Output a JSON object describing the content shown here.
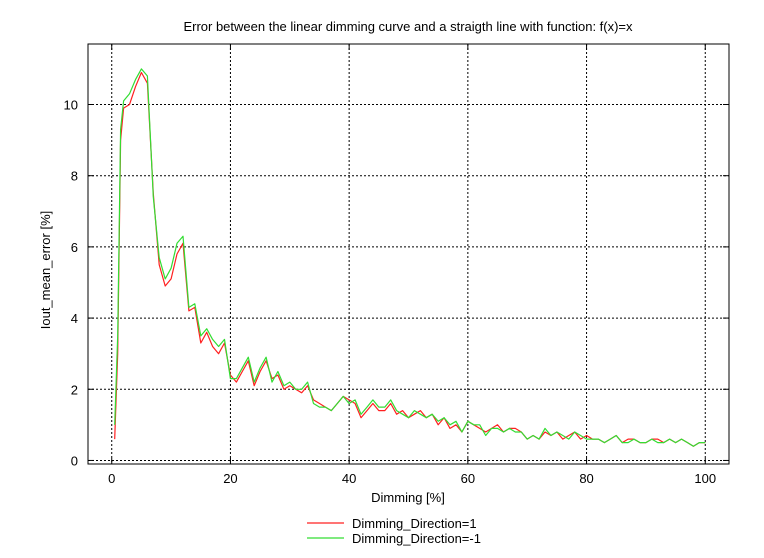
{
  "chart_data": {
    "type": "line",
    "title": "Error between the linear dimming curve and a straigth line with function: f(x)=x",
    "xlabel": "Dimming [%]",
    "ylabel": "Iout_mean_error [%]",
    "xlim": [
      -4,
      104
    ],
    "ylim": [
      -0.1,
      11.7
    ],
    "xticks": [
      0,
      20,
      40,
      60,
      80,
      100
    ],
    "yticks": [
      0,
      2,
      4,
      6,
      8,
      10
    ],
    "grid": true,
    "legend_position": "bottom-center",
    "series": [
      {
        "name": "Dimming_Direction=1",
        "color": "#ff2020",
        "points": [
          [
            0.5,
            0.6
          ],
          [
            1,
            3
          ],
          [
            1.5,
            9
          ],
          [
            2,
            9.9
          ],
          [
            3,
            10.0
          ],
          [
            4,
            10.5
          ],
          [
            5,
            10.9
          ],
          [
            6,
            10.6
          ],
          [
            7,
            7.5
          ],
          [
            8,
            5.5
          ],
          [
            9,
            4.9
          ],
          [
            10,
            5.1
          ],
          [
            11,
            5.8
          ],
          [
            12,
            6.1
          ],
          [
            13,
            4.2
          ],
          [
            14,
            4.3
          ],
          [
            15,
            3.3
          ],
          [
            16,
            3.6
          ],
          [
            17,
            3.2
          ],
          [
            18,
            3.0
          ],
          [
            19,
            3.3
          ],
          [
            20,
            2.4
          ],
          [
            21,
            2.2
          ],
          [
            22,
            2.5
          ],
          [
            23,
            2.8
          ],
          [
            24,
            2.1
          ],
          [
            25,
            2.5
          ],
          [
            26,
            2.8
          ],
          [
            27,
            2.3
          ],
          [
            28,
            2.4
          ],
          [
            29,
            2.0
          ],
          [
            30,
            2.1
          ],
          [
            31,
            2.0
          ],
          [
            32,
            1.9
          ],
          [
            33,
            2.1
          ],
          [
            34,
            1.7
          ],
          [
            35,
            1.6
          ],
          [
            36,
            1.5
          ],
          [
            37,
            1.4
          ],
          [
            38,
            1.6
          ],
          [
            39,
            1.8
          ],
          [
            40,
            1.7
          ],
          [
            41,
            1.6
          ],
          [
            42,
            1.2
          ],
          [
            43,
            1.4
          ],
          [
            44,
            1.6
          ],
          [
            45,
            1.4
          ],
          [
            46,
            1.4
          ],
          [
            47,
            1.6
          ],
          [
            48,
            1.3
          ],
          [
            49,
            1.4
          ],
          [
            50,
            1.2
          ],
          [
            51,
            1.3
          ],
          [
            52,
            1.4
          ],
          [
            53,
            1.2
          ],
          [
            54,
            1.3
          ],
          [
            55,
            1.0
          ],
          [
            56,
            1.2
          ],
          [
            57,
            0.9
          ],
          [
            58,
            1.0
          ],
          [
            59,
            0.8
          ],
          [
            60,
            1.1
          ],
          [
            61,
            1.0
          ],
          [
            62,
            0.9
          ],
          [
            63,
            0.8
          ],
          [
            64,
            0.9
          ],
          [
            65,
            1.0
          ],
          [
            66,
            0.8
          ],
          [
            67,
            0.9
          ],
          [
            68,
            0.9
          ],
          [
            69,
            0.8
          ],
          [
            70,
            0.6
          ],
          [
            71,
            0.7
          ],
          [
            72,
            0.6
          ],
          [
            73,
            0.8
          ],
          [
            74,
            0.7
          ],
          [
            75,
            0.8
          ],
          [
            76,
            0.6
          ],
          [
            77,
            0.7
          ],
          [
            78,
            0.8
          ],
          [
            79,
            0.6
          ],
          [
            80,
            0.7
          ],
          [
            81,
            0.6
          ],
          [
            82,
            0.6
          ],
          [
            83,
            0.5
          ],
          [
            84,
            0.6
          ],
          [
            85,
            0.7
          ],
          [
            86,
            0.5
          ],
          [
            87,
            0.6
          ],
          [
            88,
            0.6
          ],
          [
            89,
            0.5
          ],
          [
            90,
            0.5
          ],
          [
            91,
            0.6
          ],
          [
            92,
            0.6
          ],
          [
            93,
            0.5
          ],
          [
            94,
            0.6
          ],
          [
            95,
            0.5
          ],
          [
            96,
            0.6
          ],
          [
            97,
            0.5
          ],
          [
            98,
            0.4
          ],
          [
            99,
            0.5
          ],
          [
            100,
            0.5
          ]
        ]
      },
      {
        "name": "Dimming_Direction=-1",
        "color": "#33dd33",
        "points": [
          [
            0.5,
            1.0
          ],
          [
            1,
            3.5
          ],
          [
            1.5,
            9.3
          ],
          [
            2,
            10.1
          ],
          [
            3,
            10.3
          ],
          [
            4,
            10.7
          ],
          [
            5,
            11.0
          ],
          [
            6,
            10.8
          ],
          [
            7,
            7.4
          ],
          [
            8,
            5.7
          ],
          [
            9,
            5.1
          ],
          [
            10,
            5.4
          ],
          [
            11,
            6.1
          ],
          [
            12,
            6.3
          ],
          [
            13,
            4.3
          ],
          [
            14,
            4.4
          ],
          [
            15,
            3.5
          ],
          [
            16,
            3.7
          ],
          [
            17,
            3.4
          ],
          [
            18,
            3.2
          ],
          [
            19,
            3.4
          ],
          [
            20,
            2.3
          ],
          [
            21,
            2.3
          ],
          [
            22,
            2.6
          ],
          [
            23,
            2.9
          ],
          [
            24,
            2.2
          ],
          [
            25,
            2.6
          ],
          [
            26,
            2.9
          ],
          [
            27,
            2.2
          ],
          [
            28,
            2.5
          ],
          [
            29,
            2.1
          ],
          [
            30,
            2.2
          ],
          [
            31,
            2.0
          ],
          [
            32,
            2.0
          ],
          [
            33,
            2.2
          ],
          [
            34,
            1.6
          ],
          [
            35,
            1.5
          ],
          [
            36,
            1.5
          ],
          [
            37,
            1.4
          ],
          [
            38,
            1.6
          ],
          [
            39,
            1.8
          ],
          [
            40,
            1.6
          ],
          [
            41,
            1.7
          ],
          [
            42,
            1.3
          ],
          [
            43,
            1.5
          ],
          [
            44,
            1.7
          ],
          [
            45,
            1.5
          ],
          [
            46,
            1.5
          ],
          [
            47,
            1.7
          ],
          [
            48,
            1.4
          ],
          [
            49,
            1.3
          ],
          [
            50,
            1.2
          ],
          [
            51,
            1.4
          ],
          [
            52,
            1.3
          ],
          [
            53,
            1.2
          ],
          [
            54,
            1.3
          ],
          [
            55,
            1.1
          ],
          [
            56,
            1.2
          ],
          [
            57,
            1.0
          ],
          [
            58,
            1.1
          ],
          [
            59,
            0.8
          ],
          [
            60,
            1.1
          ],
          [
            61,
            1.0
          ],
          [
            62,
            1.0
          ],
          [
            63,
            0.7
          ],
          [
            64,
            0.9
          ],
          [
            65,
            0.9
          ],
          [
            66,
            0.8
          ],
          [
            67,
            0.9
          ],
          [
            68,
            0.8
          ],
          [
            69,
            0.8
          ],
          [
            70,
            0.6
          ],
          [
            71,
            0.7
          ],
          [
            72,
            0.6
          ],
          [
            73,
            0.9
          ],
          [
            74,
            0.7
          ],
          [
            75,
            0.8
          ],
          [
            76,
            0.7
          ],
          [
            77,
            0.6
          ],
          [
            78,
            0.8
          ],
          [
            79,
            0.7
          ],
          [
            80,
            0.6
          ],
          [
            81,
            0.6
          ],
          [
            82,
            0.6
          ],
          [
            83,
            0.5
          ],
          [
            84,
            0.6
          ],
          [
            85,
            0.7
          ],
          [
            86,
            0.5
          ],
          [
            87,
            0.5
          ],
          [
            88,
            0.6
          ],
          [
            89,
            0.5
          ],
          [
            90,
            0.5
          ],
          [
            91,
            0.6
          ],
          [
            92,
            0.5
          ],
          [
            93,
            0.5
          ],
          [
            94,
            0.6
          ],
          [
            95,
            0.5
          ],
          [
            96,
            0.6
          ],
          [
            97,
            0.5
          ],
          [
            98,
            0.4
          ],
          [
            99,
            0.5
          ],
          [
            100,
            0.5
          ]
        ]
      }
    ]
  }
}
